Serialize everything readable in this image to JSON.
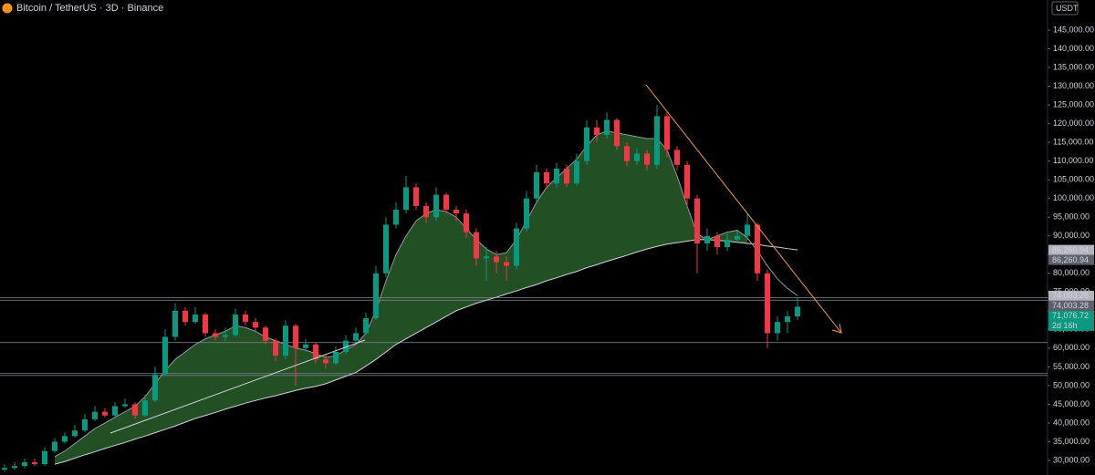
{
  "chart_data": {
    "type": "candlestick",
    "title": "Bitcoin / TetherUS · 3D · Binance",
    "currency": "USDT",
    "up_color": "#089981",
    "down_color": "#f23645",
    "open": [
      27500,
      28000,
      28500,
      29500,
      29000,
      32500,
      35000,
      36500,
      38000,
      41000,
      43000,
      42000,
      44500,
      45000,
      42000,
      46000,
      53000,
      63000,
      70000,
      67000,
      69000,
      64000,
      63000,
      63500,
      69000,
      67000,
      65500,
      62000,
      58000,
      66000,
      60000,
      61000,
      57000,
      56000,
      59000,
      62000,
      64000,
      68000,
      80000,
      93000,
      97000,
      103000,
      98000,
      95000,
      101000,
      97000,
      96000,
      91000,
      84000,
      84500,
      83000,
      82000,
      92000,
      100000,
      107000,
      104000,
      108000,
      104000,
      110000,
      119000,
      117000,
      121000,
      114000,
      110000,
      112000,
      109000,
      122000,
      113000,
      109000,
      100000,
      88000,
      90000,
      87000,
      89000,
      90000,
      93000,
      80000,
      64000,
      67000,
      68500
    ],
    "high": [
      29000,
      29500,
      30500,
      30500,
      33500,
      36000,
      37500,
      39500,
      42500,
      44500,
      44000,
      45500,
      46500,
      45500,
      47500,
      55000,
      65000,
      72000,
      71000,
      71000,
      69500,
      65000,
      65500,
      70500,
      70000,
      68000,
      66000,
      62500,
      67500,
      66500,
      62500,
      61500,
      58500,
      60500,
      63500,
      65500,
      69500,
      82000,
      95000,
      99000,
      106000,
      104000,
      99000,
      103000,
      101500,
      98000,
      97000,
      92000,
      87000,
      86000,
      84500,
      93500,
      102000,
      109000,
      108000,
      109500,
      109000,
      112000,
      121000,
      121000,
      123000,
      121500,
      115000,
      113500,
      113000,
      125000,
      123000,
      114000,
      110000,
      101000,
      92000,
      91000,
      90500,
      91500,
      96000,
      93500,
      81000,
      68500,
      70000,
      73500
    ],
    "low": [
      27000,
      27500,
      28000,
      28500,
      28500,
      32000,
      34500,
      36000,
      37500,
      40500,
      41500,
      41500,
      44000,
      41000,
      41500,
      45500,
      52500,
      62000,
      66000,
      66500,
      63000,
      62000,
      62000,
      63000,
      66000,
      64500,
      61000,
      56500,
      57000,
      50000,
      59000,
      56000,
      54500,
      55500,
      58500,
      61500,
      63500,
      67500,
      79000,
      92000,
      96000,
      97000,
      93500,
      94000,
      96000,
      94000,
      89500,
      82000,
      78000,
      80000,
      78000,
      81000,
      91000,
      99000,
      102500,
      103000,
      103000,
      103500,
      109000,
      115000,
      116000,
      113000,
      108500,
      109000,
      107500,
      108000,
      111000,
      107500,
      98000,
      80000,
      86000,
      85000,
      86000,
      88000,
      89000,
      78000,
      60000,
      62000,
      64000,
      67500
    ],
    "close": [
      28000,
      28500,
      29500,
      29000,
      32500,
      35000,
      36500,
      38000,
      41000,
      43000,
      42000,
      44500,
      45000,
      42000,
      46000,
      53000,
      63000,
      70000,
      67000,
      69000,
      64000,
      63000,
      63500,
      69000,
      67000,
      65500,
      62000,
      58000,
      66000,
      60000,
      61000,
      57000,
      56000,
      59000,
      62000,
      64000,
      68000,
      80000,
      93000,
      97000,
      103000,
      98000,
      95000,
      101000,
      97000,
      96000,
      91000,
      84000,
      84500,
      83000,
      82000,
      92000,
      100000,
      107000,
      104000,
      108000,
      104000,
      110000,
      119000,
      117000,
      121000,
      114000,
      110000,
      112000,
      109000,
      122000,
      113000,
      109000,
      100000,
      88000,
      90000,
      87000,
      89000,
      90000,
      93000,
      80000,
      64000,
      67000,
      68500,
      71076.72
    ],
    "ma_fast": [
      null,
      null,
      null,
      null,
      null,
      31000,
      32500,
      34500,
      36500,
      38500,
      40000,
      41500,
      43000,
      44500,
      47000,
      50500,
      54000,
      57000,
      59000,
      61000,
      62500,
      63500,
      64500,
      66000,
      65500,
      64500,
      63000,
      62000,
      61000,
      60000,
      59500,
      58500,
      57500,
      58000,
      59500,
      61000,
      64000,
      70000,
      78000,
      85000,
      90000,
      94000,
      96000,
      97000,
      96500,
      95000,
      92000,
      89000,
      86500,
      85000,
      85500,
      89000,
      94000,
      99000,
      103000,
      105500,
      108000,
      110500,
      114000,
      117000,
      118000,
      117500,
      117000,
      116500,
      116000,
      116000,
      113000,
      106000,
      98000,
      90500,
      89000,
      90000,
      91000,
      91500,
      89500,
      86000,
      82000,
      78500,
      76000,
      74003.28
    ],
    "ma_slow": [
      null,
      null,
      null,
      null,
      null,
      29000,
      29700,
      30600,
      31500,
      32300,
      33200,
      34000,
      34800,
      35700,
      36500,
      37400,
      38300,
      39200,
      40200,
      41200,
      42000,
      42800,
      43700,
      44500,
      45300,
      46000,
      46700,
      47300,
      48000,
      48700,
      49300,
      49800,
      50500,
      51500,
      52500,
      53500,
      55200,
      57000,
      59000,
      61000,
      62500,
      64000,
      65500,
      67000,
      68500,
      70000,
      71000,
      72000,
      72800,
      73600,
      74500,
      75300,
      76200,
      77000,
      78000,
      78800,
      79700,
      80500,
      81500,
      82300,
      83200,
      84000,
      84800,
      85700,
      86500,
      87200,
      87800,
      88200,
      88600,
      89000,
      89000,
      88800,
      88600,
      88300,
      88000,
      87700,
      87300,
      87000,
      86600,
      86260.94
    ],
    "ma_fast_color": "#9598a1",
    "ma_slow_color": "#d1d4dc",
    "fill_color": "rgba(76,175,80,0.45)",
    "levels": [
      73500,
      72800,
      61500,
      53300,
      52700
    ],
    "level_color": "#787b86",
    "price_labels": [
      {
        "value": 86260.94,
        "label": "86,260.94",
        "color": "#b2b5be"
      },
      {
        "value": 86260.94,
        "label": "86,260.94",
        "color": "#5d606b"
      },
      {
        "value": 74003.28,
        "label": "74,003.28",
        "color": "#b2b5be"
      },
      {
        "value": 74003.28,
        "label": "74,003.28",
        "color": "#5d606b"
      },
      {
        "value": 71076.72,
        "label": "71,076.72",
        "color": "#089981",
        "countdown": "2d 16h"
      }
    ],
    "ylim": [
      26100,
      153040
    ],
    "yticks": [
      {
        "value": 145000,
        "label": "145,000.00"
      },
      {
        "value": 140000,
        "label": "140,000.00"
      },
      {
        "value": 135000,
        "label": "135,000.00"
      },
      {
        "value": 130000,
        "label": "130,000.00"
      },
      {
        "value": 125000,
        "label": "125,000.00"
      },
      {
        "value": 120000,
        "label": "120,000.00"
      },
      {
        "value": 115000,
        "label": "115,000.00"
      },
      {
        "value": 110000,
        "label": "110,000.00"
      },
      {
        "value": 105000,
        "label": "105,000.00"
      },
      {
        "value": 100000,
        "label": "100,000.00"
      },
      {
        "value": 95000,
        "label": "95,000.00"
      },
      {
        "value": 90000,
        "label": "90,000.00"
      },
      {
        "value": 85000,
        "label": "85,000.00"
      },
      {
        "value": 80000,
        "label": "80,000.00"
      },
      {
        "value": 75000,
        "label": "75,000.00"
      },
      {
        "value": 70000,
        "label": "70,000.00"
      },
      {
        "value": 65000,
        "label": "65,000.00"
      },
      {
        "value": 60000,
        "label": "60,000.00"
      },
      {
        "value": 55000,
        "label": "55,000.00"
      },
      {
        "value": 50000,
        "label": "50,000.00"
      },
      {
        "value": 45000,
        "label": "45,000.00"
      },
      {
        "value": 40000,
        "label": "40,000.00"
      },
      {
        "value": 35000,
        "label": "35,000.00"
      },
      {
        "value": 30000,
        "label": "30,000.00"
      }
    ],
    "grid": false
  }
}
